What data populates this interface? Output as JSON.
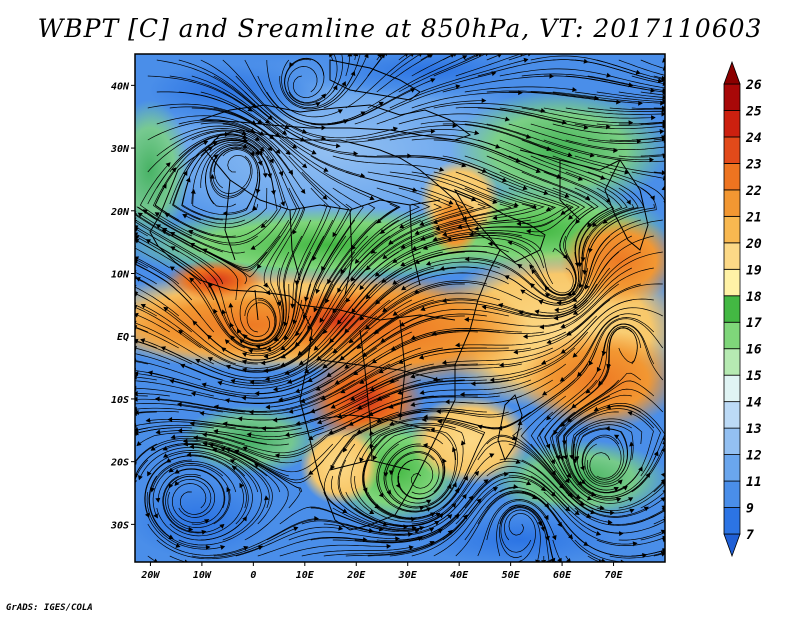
{
  "title": "WBPT [C] and Sreamline at 850hPa, VT: 2017110603",
  "credit": "GrADS: IGES/COLA",
  "map": {
    "lon_range": [
      -23,
      80
    ],
    "lat_range": [
      -36,
      45
    ],
    "lat_ticks": [
      {
        "value": 40,
        "label": "40N"
      },
      {
        "value": 30,
        "label": "30N"
      },
      {
        "value": 20,
        "label": "20N"
      },
      {
        "value": 10,
        "label": "10N"
      },
      {
        "value": 0,
        "label": "EQ"
      },
      {
        "value": -10,
        "label": "10S"
      },
      {
        "value": -20,
        "label": "20S"
      },
      {
        "value": -30,
        "label": "30S"
      }
    ],
    "lon_ticks": [
      {
        "value": -20,
        "label": "20W"
      },
      {
        "value": -10,
        "label": "10W"
      },
      {
        "value": 0,
        "label": "0"
      },
      {
        "value": 10,
        "label": "10E"
      },
      {
        "value": 20,
        "label": "20E"
      },
      {
        "value": 30,
        "label": "30E"
      },
      {
        "value": 40,
        "label": "40E"
      },
      {
        "value": 50,
        "label": "50E"
      },
      {
        "value": 60,
        "label": "60E"
      },
      {
        "value": 70,
        "label": "70E"
      }
    ]
  },
  "colorbar": {
    "levels": [
      "7",
      "9",
      "11",
      "12",
      "13",
      "14",
      "15",
      "16",
      "17",
      "18",
      "19",
      "20",
      "21",
      "22",
      "23",
      "24",
      "25",
      "26"
    ],
    "colors": [
      "#1f5fd6",
      "#2c74e4",
      "#4a8ee9",
      "#6aa6ee",
      "#93c0f2",
      "#bcdaf6",
      "#e0f4f4",
      "#b6eab2",
      "#7fd67a",
      "#43b843",
      "#fff2a6",
      "#fcd987",
      "#f8b850",
      "#f29732",
      "#ee7420",
      "#e24a1a",
      "#cc200f",
      "#a80808",
      "#8b0000"
    ]
  }
}
